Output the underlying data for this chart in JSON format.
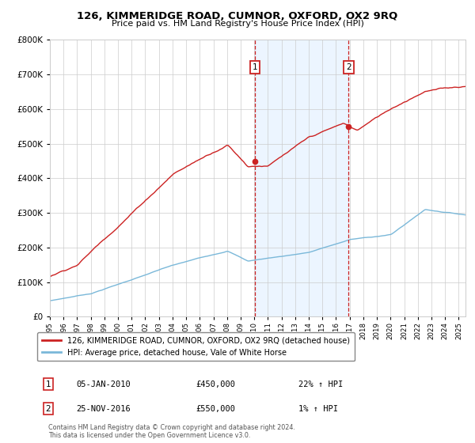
{
  "title": "126, KIMMERIDGE ROAD, CUMNOR, OXFORD, OX2 9RQ",
  "subtitle": "Price paid vs. HM Land Registry's House Price Index (HPI)",
  "legend_line1": "126, KIMMERIDGE ROAD, CUMNOR, OXFORD, OX2 9RQ (detached house)",
  "legend_line2": "HPI: Average price, detached house, Vale of White Horse",
  "annotation1_date": "05-JAN-2010",
  "annotation1_price": "£450,000",
  "annotation1_hpi": "22% ↑ HPI",
  "annotation2_date": "25-NOV-2016",
  "annotation2_price": "£550,000",
  "annotation2_hpi": "1% ↑ HPI",
  "footer": "Contains HM Land Registry data © Crown copyright and database right 2024.\nThis data is licensed under the Open Government Licence v3.0.",
  "sale1_year": 2010.04,
  "sale1_value": 450000,
  "sale2_year": 2016.92,
  "sale2_value": 550000,
  "hpi_color": "#7ab8d9",
  "price_color": "#cc2222",
  "sale_dot_color": "#cc2222",
  "vline_color": "#cc2222",
  "shade_color": "#ddeeff",
  "ylim_max": 800000,
  "xlim_start": 1995,
  "xlim_end": 2025.5,
  "background_color": "#ffffff",
  "grid_color": "#cccccc",
  "ann_box_color": "#cc2222"
}
